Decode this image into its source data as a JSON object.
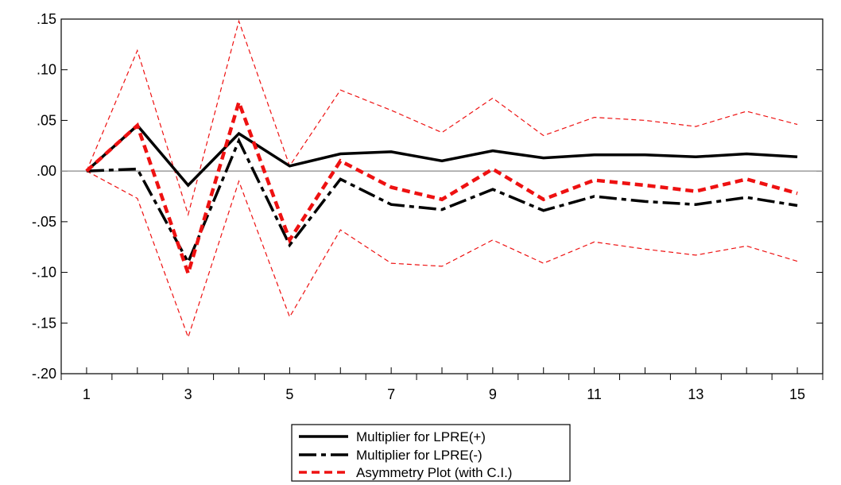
{
  "chart_data": {
    "type": "line",
    "x": [
      1,
      2,
      3,
      4,
      5,
      6,
      7,
      8,
      9,
      10,
      11,
      12,
      13,
      14,
      15
    ],
    "x_tick_labels": [
      "1",
      "3",
      "5",
      "7",
      "9",
      "11",
      "13",
      "15"
    ],
    "x_tick_label_values": [
      1,
      3,
      5,
      7,
      9,
      11,
      13,
      15
    ],
    "y_ticks": [
      0.15,
      0.1,
      0.05,
      0.0,
      -0.05,
      -0.1,
      -0.15,
      -0.2
    ],
    "y_tick_labels": [
      ".15",
      ".10",
      ".05",
      ".00",
      "-.05",
      "-.10",
      "-.15",
      "-.20"
    ],
    "ylim": [
      -0.2,
      0.15
    ],
    "xlim": [
      0.5,
      15.5
    ],
    "zero_line": true,
    "grid": false,
    "legend_position": "bottom-center",
    "series": [
      {
        "name": "Multiplier for LPRE(+)",
        "style": "solid",
        "color": "#000000",
        "values": [
          0.0,
          0.045,
          -0.014,
          0.037,
          0.005,
          0.017,
          0.019,
          0.01,
          0.02,
          0.013,
          0.016,
          0.016,
          0.014,
          0.017,
          0.014
        ]
      },
      {
        "name": "Multiplier for LPRE(-)",
        "style": "dash-dot",
        "color": "#000000",
        "values": [
          0.0,
          0.002,
          -0.09,
          0.03,
          -0.073,
          -0.008,
          -0.033,
          -0.038,
          -0.018,
          -0.039,
          -0.025,
          -0.03,
          -0.033,
          -0.026,
          -0.034
        ]
      },
      {
        "name": "Asymmetry Plot (with C.I.)",
        "style": "dashed",
        "color": "#ee1111",
        "values": [
          0.0,
          0.045,
          -0.101,
          0.068,
          -0.068,
          0.01,
          -0.016,
          -0.028,
          0.002,
          -0.028,
          -0.009,
          -0.014,
          -0.02,
          -0.008,
          -0.022
        ]
      }
    ],
    "confidence_interval": {
      "color": "#ee1111",
      "upper": [
        0.0,
        0.119,
        -0.043,
        0.148,
        0.005,
        0.08,
        0.06,
        0.038,
        0.072,
        0.035,
        0.053,
        0.05,
        0.044,
        0.059,
        0.046
      ],
      "lower": [
        0.0,
        -0.027,
        -0.164,
        -0.01,
        -0.144,
        -0.058,
        -0.091,
        -0.094,
        -0.068,
        -0.091,
        -0.07,
        -0.077,
        -0.083,
        -0.074,
        -0.089
      ]
    }
  }
}
